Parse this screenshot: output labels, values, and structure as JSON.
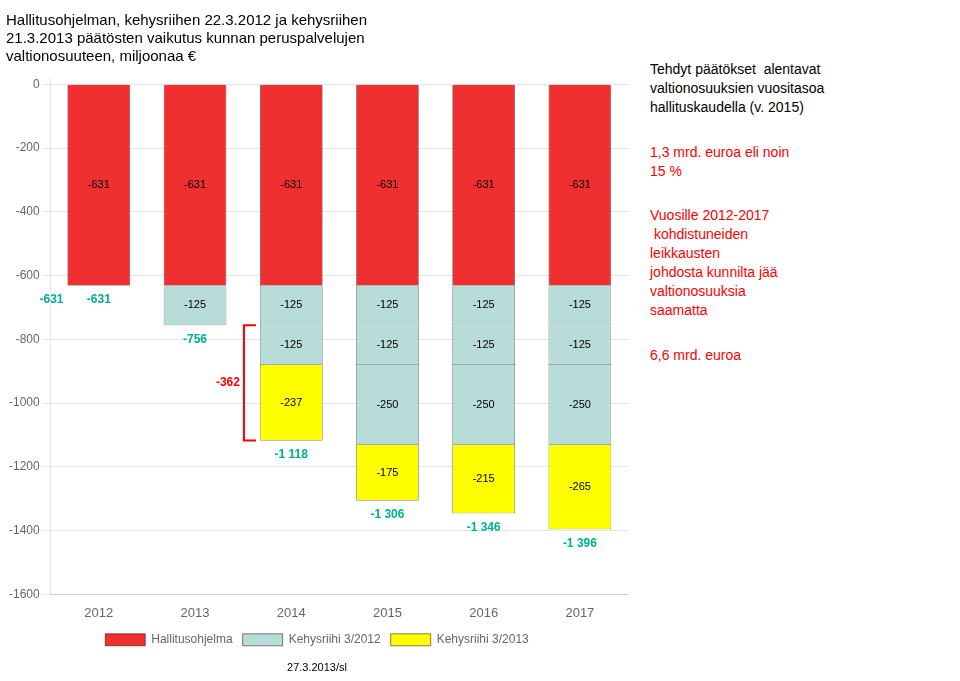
{
  "chart_data": {
    "type": "bar",
    "stacked": true,
    "title": "Hallitusohjelman, kehysriihen 22.3.2012 ja kehysriihen\n21.3.2013 päätösten vaikutus kunnan peruspalvelujen\nvaltionosuuteen, miljoonaa €",
    "footer": "27.3.2013/sl",
    "categories": [
      2012,
      2013,
      2014,
      2015,
      2016,
      2017
    ],
    "series": [
      {
        "name": "Hallitusohjelma",
        "color": "#f03030",
        "values": [
          -631,
          -631,
          -631,
          -631,
          -631,
          -631
        ]
      },
      {
        "name": "Kehysriihi 3/2012",
        "color": "#b8ddd8",
        "values": [
          0,
          -125,
          -125,
          -125,
          -125,
          -125
        ]
      },
      {
        "name": "Kehysriihi 3/2012",
        "color": "#b8ddd8",
        "values": [
          0,
          0,
          -125,
          -125,
          -125,
          -125
        ]
      },
      {
        "name": "Kehysriihi 3/2012",
        "color": "#b8ddd8",
        "values": [
          0,
          0,
          0,
          -250,
          -250,
          -250
        ]
      },
      {
        "name": "Kehysriihi 3/2013",
        "color": "#ffff00",
        "values": [
          0,
          0,
          -237,
          -175,
          -215,
          -265
        ]
      }
    ],
    "ylim": [
      -1600,
      20
    ],
    "yticks": [
      0,
      -200,
      -400,
      -600,
      -800,
      -1000,
      -1200,
      -1400,
      -1600
    ],
    "grid": true,
    "legend": "bottom",
    "data_labels": true,
    "annotations": [
      {
        "text": "-631",
        "x": 2012,
        "y": -631,
        "color": "#00b090"
      },
      {
        "text": "-756",
        "x": 2013,
        "y": -756,
        "color": "#00b090"
      },
      {
        "text": "-1 118",
        "x": 2014,
        "y": -1118,
        "color": "#00b090"
      },
      {
        "text": "-1 306",
        "x": 2015,
        "y": -1306,
        "color": "#00b090"
      },
      {
        "text": "-1 346",
        "x": 2016,
        "y": -1346,
        "color": "#00b090"
      },
      {
        "text": "-1 396",
        "x": 2017,
        "y": -1396,
        "color": "#00b090"
      },
      {
        "text": "-631",
        "x": 2012,
        "y": -631,
        "color": "#00b090",
        "side": "left"
      },
      {
        "text": "-362",
        "x": 2014,
        "y": [
          -756,
          -1118
        ],
        "color": "red",
        "side": "left"
      },
      {
        "text": "Tehdyt päätökset  alentavat\nvaltionosuuksien vuositasoa\nhallituskaudella (v. 2015)",
        "color": "black"
      },
      {
        "text": "1,3 mrd. euroa eli noin\n15 %",
        "color": "red"
      },
      {
        "text": "Vuosille 2012-2017\n kohdistuneiden\nleikkausten\njohdosta kunnilta jää\nvaltionosuuksia\nsaamatta",
        "color": "red"
      },
      {
        "text": "6,6 mrd. euroa",
        "color": "red"
      }
    ]
  }
}
